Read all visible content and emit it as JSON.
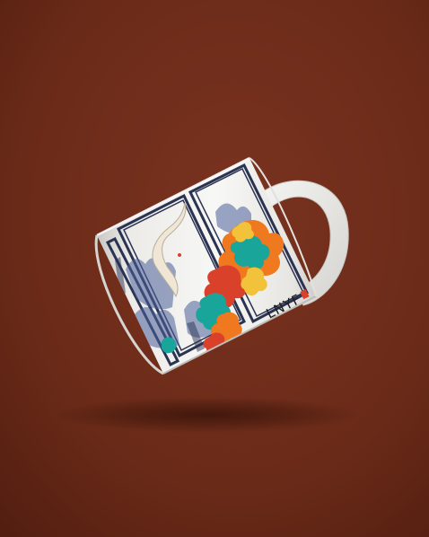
{
  "colors": {
    "backdrop": "#6a2a18",
    "backdrop_light": "#7a3320",
    "backdrop_dark": "#4e1c0f",
    "mug_white": "#f3f3f1",
    "mug_shade": "#d9d8d4",
    "frame_navy": "#2b3352",
    "ink_blue": "#4b5f9a",
    "cloud_orange": "#f0781e",
    "cloud_teal": "#1aa59a",
    "cloud_red": "#d9412b",
    "cloud_yellow": "#f2c33a",
    "crane_cream": "#efe6d6"
  },
  "mug": {
    "logo_text": "LNYF",
    "seal_icon": "red-seal-icon"
  }
}
